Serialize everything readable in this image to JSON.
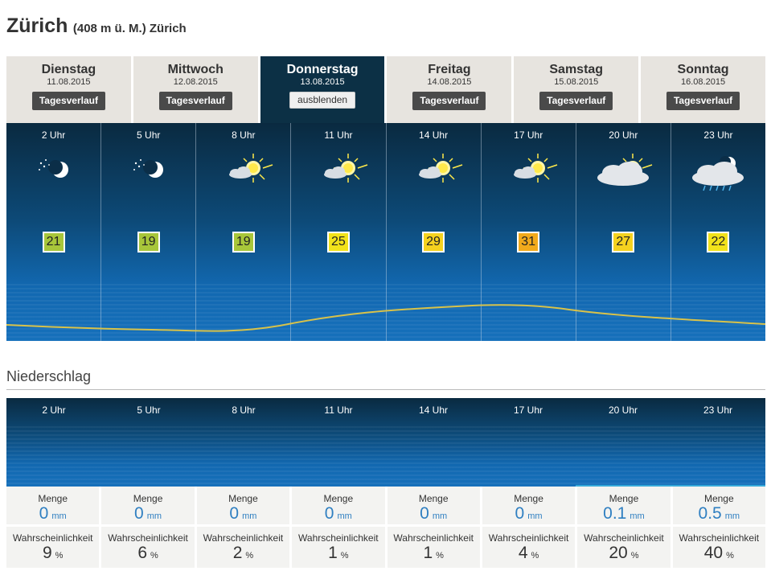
{
  "header": {
    "city": "Zürich",
    "subtitle": "(408 m ü. M.) Zürich"
  },
  "days": [
    {
      "name": "Dienstag",
      "date": "11.08.2015",
      "button": "Tagesverlauf",
      "active": false
    },
    {
      "name": "Mittwoch",
      "date": "12.08.2015",
      "button": "Tagesverlauf",
      "active": false
    },
    {
      "name": "Donnerstag",
      "date": "13.08.2015",
      "button": "ausblenden",
      "active": true
    },
    {
      "name": "Freitag",
      "date": "14.08.2015",
      "button": "Tagesverlauf",
      "active": false
    },
    {
      "name": "Samstag",
      "date": "15.08.2015",
      "button": "Tagesverlauf",
      "active": false
    },
    {
      "name": "Sonntag",
      "date": "16.08.2015",
      "button": "Tagesverlauf",
      "active": false
    }
  ],
  "forecast": [
    {
      "hour": "2 Uhr",
      "icon": "night-clear-moon-icon",
      "temp": "21",
      "temp_color": "#a8c63a"
    },
    {
      "hour": "5 Uhr",
      "icon": "night-clear-moon-icon",
      "temp": "19",
      "temp_color": "#a8c63a"
    },
    {
      "hour": "8 Uhr",
      "icon": "sun-light-clouds-icon",
      "temp": "19",
      "temp_color": "#a8c63a"
    },
    {
      "hour": "11 Uhr",
      "icon": "sun-light-clouds-icon",
      "temp": "25",
      "temp_color": "#f2e21b"
    },
    {
      "hour": "14 Uhr",
      "icon": "sun-light-clouds-icon",
      "temp": "29",
      "temp_color": "#f5d21f"
    },
    {
      "hour": "17 Uhr",
      "icon": "sun-light-clouds-icon",
      "temp": "31",
      "temp_color": "#f2aa1c"
    },
    {
      "hour": "20 Uhr",
      "icon": "sun-cloudy-icon",
      "temp": "27",
      "temp_color": "#f5d21f"
    },
    {
      "hour": "23 Uhr",
      "icon": "night-cloudy-rain-icon",
      "temp": "22",
      "temp_color": "#f2e21b"
    }
  ],
  "precipitation": {
    "title": "Niederschlag",
    "menge_label": "Menge",
    "menge_unit": "mm",
    "prob_label": "Wahrscheinlichkeit",
    "prob_unit": "%",
    "items": [
      {
        "hour": "2 Uhr",
        "menge": "0",
        "prob": "9"
      },
      {
        "hour": "5 Uhr",
        "menge": "0",
        "prob": "6"
      },
      {
        "hour": "8 Uhr",
        "menge": "0",
        "prob": "2"
      },
      {
        "hour": "11 Uhr",
        "menge": "0",
        "prob": "1"
      },
      {
        "hour": "14 Uhr",
        "menge": "0",
        "prob": "1"
      },
      {
        "hour": "17 Uhr",
        "menge": "0",
        "prob": "4"
      },
      {
        "hour": "20 Uhr",
        "menge": "0.1",
        "prob": "20"
      },
      {
        "hour": "23 Uhr",
        "menge": "0.5",
        "prob": "40"
      }
    ]
  },
  "colors": {
    "panel_dark": "#0a2a40",
    "panel_light": "#1670bb",
    "curve": "#d8c24a",
    "rain_bar": "#36a9d9",
    "menge_text": "#2f7fc1"
  }
}
